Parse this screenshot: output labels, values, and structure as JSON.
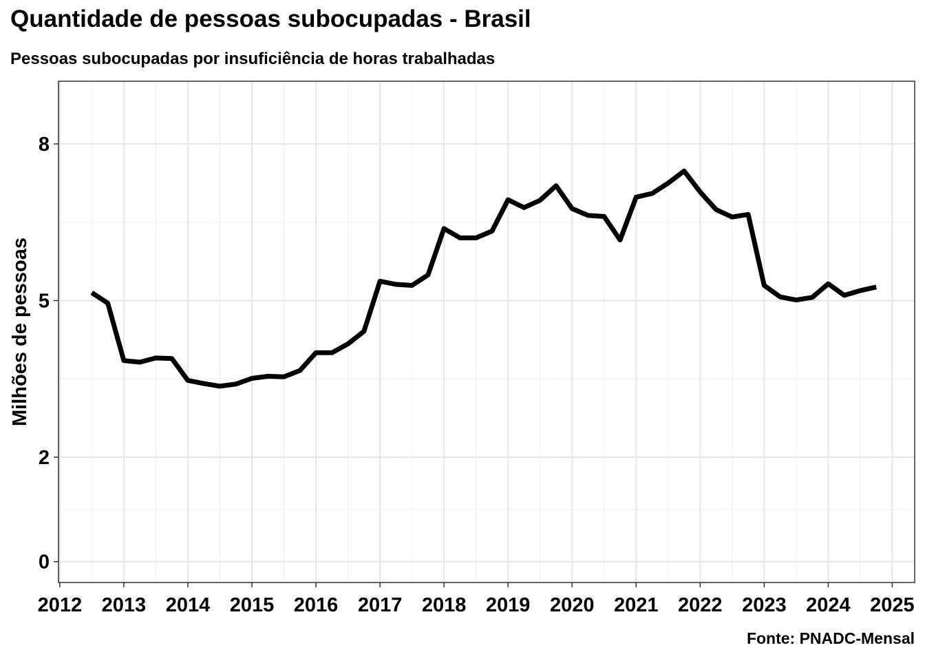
{
  "chart_data": {
    "type": "line",
    "title": "Quantidade de pessoas subocupadas - Brasil",
    "subtitle": "Pessoas subocupadas por insuficiência de horas trabalhadas",
    "caption": "Fonte: PNADC-Mensal",
    "xlabel": "",
    "ylabel": "Milhões de pessoas",
    "xlim": [
      2011.98,
      2025.35
    ],
    "ylim": [
      -0.4,
      9.2
    ],
    "x_ticks": [
      "2012",
      "2013",
      "2014",
      "2015",
      "2016",
      "2017",
      "2018",
      "2019",
      "2020",
      "2021",
      "2022",
      "2023",
      "2024",
      "2025"
    ],
    "y_ticks": [
      0,
      2,
      5,
      8
    ],
    "y_tick_labels": [
      "0",
      "2",
      "5",
      "8"
    ],
    "grid": true,
    "legend": "none",
    "series": [
      {
        "color": "#000000",
        "points": [
          [
            "2012-07",
            5.15
          ],
          [
            "2012-10",
            4.95
          ],
          [
            "2013-01",
            3.85
          ],
          [
            "2013-04",
            3.82
          ],
          [
            "2013-07",
            3.9
          ],
          [
            "2013-10",
            3.89
          ],
          [
            "2014-01",
            3.47
          ],
          [
            "2014-04",
            3.41
          ],
          [
            "2014-07",
            3.36
          ],
          [
            "2014-10",
            3.4
          ],
          [
            "2015-01",
            3.51
          ],
          [
            "2015-04",
            3.55
          ],
          [
            "2015-07",
            3.54
          ],
          [
            "2015-10",
            3.66
          ],
          [
            "2016-01",
            4.0
          ],
          [
            "2016-04",
            4.0
          ],
          [
            "2016-07",
            4.17
          ],
          [
            "2016-10",
            4.41
          ],
          [
            "2017-01",
            5.37
          ],
          [
            "2017-04",
            5.31
          ],
          [
            "2017-07",
            5.29
          ],
          [
            "2017-10",
            5.49
          ],
          [
            "2018-01",
            6.38
          ],
          [
            "2018-04",
            6.2
          ],
          [
            "2018-07",
            6.2
          ],
          [
            "2018-10",
            6.33
          ],
          [
            "2019-01",
            6.93
          ],
          [
            "2019-04",
            6.78
          ],
          [
            "2019-07",
            6.92
          ],
          [
            "2019-10",
            7.2
          ],
          [
            "2020-01",
            6.76
          ],
          [
            "2020-04",
            6.63
          ],
          [
            "2020-07",
            6.61
          ],
          [
            "2020-10",
            6.16
          ],
          [
            "2021-01",
            6.98
          ],
          [
            "2021-04",
            7.05
          ],
          [
            "2021-07",
            7.25
          ],
          [
            "2021-10",
            7.48
          ],
          [
            "2022-01",
            7.08
          ],
          [
            "2022-04",
            6.74
          ],
          [
            "2022-07",
            6.6
          ],
          [
            "2022-10",
            6.65
          ],
          [
            "2023-01",
            5.29
          ],
          [
            "2023-04",
            5.07
          ],
          [
            "2023-07",
            5.01
          ],
          [
            "2023-10",
            5.06
          ],
          [
            "2024-01",
            5.32
          ],
          [
            "2024-04",
            5.1
          ],
          [
            "2024-07",
            5.19
          ],
          [
            "2024-10",
            5.26
          ]
        ]
      }
    ]
  }
}
